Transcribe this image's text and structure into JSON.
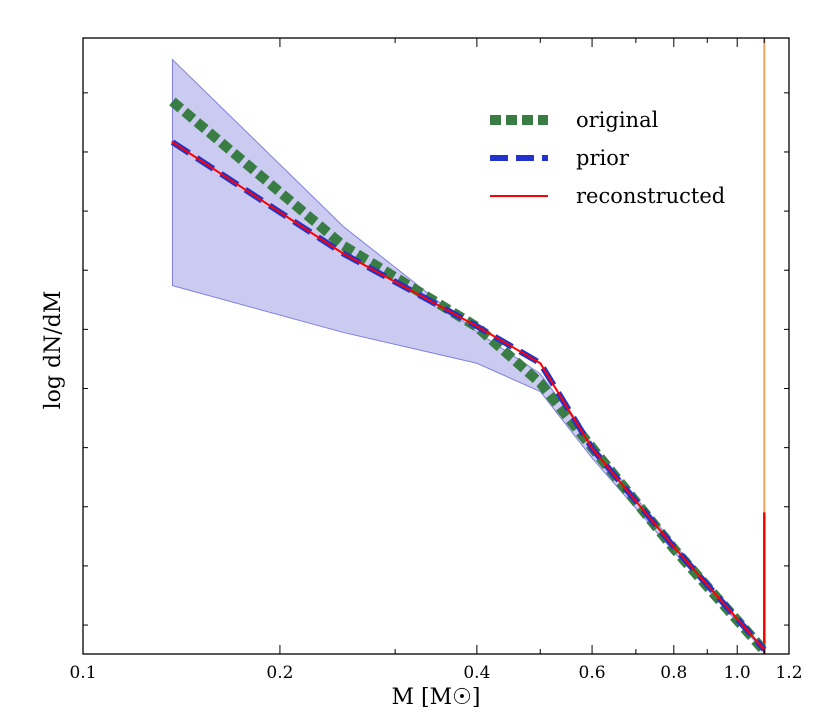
{
  "chart_data": {
    "type": "line",
    "title": "",
    "xlabel": "M [M☉]",
    "ylabel": "log dN/dM",
    "xscale": "log",
    "xlim": [
      0.1,
      1.2
    ],
    "ylim": [
      0.0,
      10.0
    ],
    "y_ticklabels_shown": false,
    "xticks": [
      {
        "value": 0.1,
        "label": "0.1"
      },
      {
        "value": 0.2,
        "label": "0.2"
      },
      {
        "value": 0.4,
        "label": "0.4"
      },
      {
        "value": 0.6,
        "label": "0.6"
      },
      {
        "value": 0.8,
        "label": "0.8"
      },
      {
        "value": 1.0,
        "label": "1.0"
      },
      {
        "value": 1.2,
        "label": "1.2"
      }
    ],
    "yticks_minor": [
      0.47,
      1.43,
      2.39,
      3.35,
      4.31,
      5.27,
      6.23,
      7.19,
      8.15,
      9.11
    ],
    "band": {
      "name": "prior range",
      "color": "#a8a8e8",
      "x": [
        0.137,
        0.25,
        0.4,
        0.5,
        0.6,
        0.8,
        1.1
      ],
      "upper": [
        9.65,
        6.94,
        5.23,
        4.55,
        3.41,
        1.79,
        0.07
      ],
      "lower": [
        5.98,
        5.22,
        4.72,
        4.26,
        3.18,
        1.66,
        0.04
      ]
    },
    "series": [
      {
        "name": "original",
        "style": "dotted",
        "color": "#3a7d44",
        "x": [
          0.137,
          0.25,
          0.4,
          0.5,
          0.6,
          0.8,
          1.1
        ],
        "y": [
          8.97,
          6.63,
          5.31,
          4.4,
          3.35,
          1.71,
          0.05
        ]
      },
      {
        "name": "prior",
        "style": "dashed",
        "color": "#2233cc",
        "x": [
          0.137,
          0.25,
          0.4,
          0.5,
          0.6,
          0.8,
          1.1
        ],
        "y": [
          8.31,
          6.5,
          5.32,
          4.72,
          3.34,
          1.74,
          0.07
        ]
      },
      {
        "name": "reconstructed",
        "style": "solid",
        "color": "#ff0000",
        "x": [
          0.137,
          0.25,
          0.4,
          0.5,
          0.6,
          0.8,
          1.1
        ],
        "y": [
          8.31,
          6.5,
          5.32,
          4.72,
          3.34,
          1.74,
          0.07
        ]
      }
    ],
    "spikes": [
      {
        "name": "orange spike",
        "color": "#f4a460",
        "x": 1.1,
        "y_from": 0.0,
        "y_to": 10.0
      },
      {
        "name": "red spike",
        "color": "#ff0000",
        "x": 1.1,
        "y_from": 0.0,
        "y_to": 2.3
      }
    ],
    "legend": {
      "position": "top-right",
      "entries": [
        "original",
        "prior",
        "reconstructed"
      ]
    }
  }
}
